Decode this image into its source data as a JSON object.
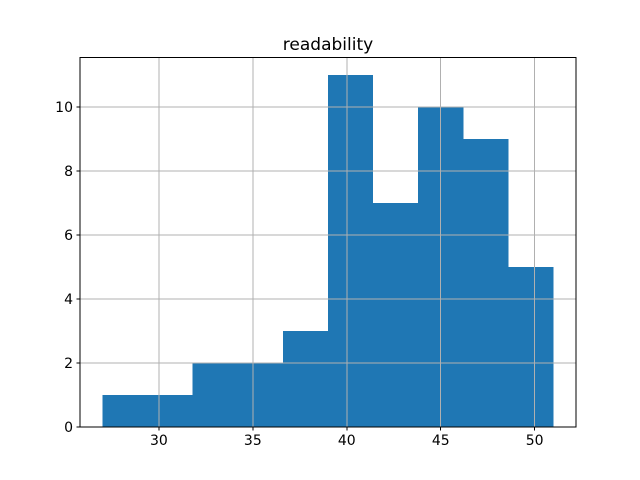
{
  "figure": {
    "background": "#ffffff"
  },
  "chart_data": {
    "type": "histogram",
    "title": "readability",
    "xlabel": "",
    "ylabel": "",
    "bin_edges": [
      27.0,
      29.4,
      31.8,
      34.2,
      36.6,
      39.0,
      41.4,
      43.8,
      46.2,
      48.6,
      51.0
    ],
    "counts": [
      1,
      1,
      2,
      2,
      3,
      11,
      7,
      10,
      9,
      5
    ],
    "xlim": [
      25.8,
      52.2
    ],
    "ylim": [
      0,
      11.55
    ],
    "xticks": {
      "values": [
        30,
        35,
        40,
        45,
        50
      ],
      "labels": [
        "30",
        "35",
        "40",
        "45",
        "50"
      ]
    },
    "yticks": {
      "values": [
        0,
        2,
        4,
        6,
        8,
        10
      ],
      "labels": [
        "0",
        "2",
        "4",
        "6",
        "8",
        "10"
      ]
    },
    "grid": true,
    "grid_on_top_of_bars": true,
    "legend": null,
    "bar_color": "#1f77b4",
    "grid_color": "#b0b0b0",
    "axis_color": "#000000",
    "tick_label_color": "#000000",
    "title_color": "#000000"
  }
}
